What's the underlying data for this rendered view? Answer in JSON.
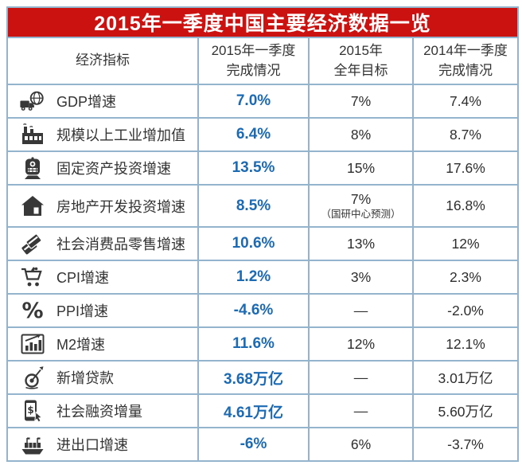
{
  "table": {
    "title": "2015年一季度中国主要经济数据一览",
    "header": {
      "indicator": "经济指标",
      "col_2015q1_line1": "2015年一季度",
      "col_2015q1_line2": "完成情况",
      "col_target_line1": "2015年",
      "col_target_line2": "全年目标",
      "col_2014q1_line1": "2014年一季度",
      "col_2014q1_line2": "完成情况"
    },
    "rows": [
      {
        "icon": "truck-globe-icon",
        "indicator": "GDP增速",
        "q1_2015": "7.0%",
        "target_2015": "7%",
        "note": "",
        "q1_2014": "7.4%"
      },
      {
        "icon": "factory-icon",
        "indicator": "规模以上工业增加值",
        "q1_2015": "6.4%",
        "target_2015": "8%",
        "note": "",
        "q1_2014": "8.7%"
      },
      {
        "icon": "train-icon",
        "indicator": "固定资产投资增速",
        "q1_2015": "13.5%",
        "target_2015": "15%",
        "note": "",
        "q1_2014": "17.6%"
      },
      {
        "icon": "house-icon",
        "indicator": "房地产开发投资增速",
        "q1_2015": "8.5%",
        "target_2015": "7%",
        "note": "（国研中心预测）",
        "q1_2014": "16.8%"
      },
      {
        "icon": "credit-cards-icon",
        "indicator": "社会消费品零售增速",
        "q1_2015": "10.6%",
        "target_2015": "13%",
        "note": "",
        "q1_2014": "12%"
      },
      {
        "icon": "shopping-cart-icon",
        "indicator": "CPI增速",
        "q1_2015": "1.2%",
        "target_2015": "3%",
        "note": "",
        "q1_2014": "2.3%"
      },
      {
        "icon": "percent-icon",
        "indicator": "PPI增速",
        "q1_2015": "-4.6%",
        "target_2015": "—",
        "note": "",
        "q1_2014": "-2.0%"
      },
      {
        "icon": "bar-chart-icon",
        "indicator": "M2增速",
        "q1_2015": "11.6%",
        "target_2015": "12%",
        "note": "",
        "q1_2014": "12.1%"
      },
      {
        "icon": "dart-target-icon",
        "indicator": "新增贷款",
        "q1_2015": "3.68万亿",
        "target_2015": "—",
        "note": "",
        "q1_2014": "3.01万亿"
      },
      {
        "icon": "mobile-payment-icon",
        "indicator": "社会融资增量",
        "q1_2015": "4.61万亿",
        "target_2015": "—",
        "note": "",
        "q1_2014": "5.60万亿"
      },
      {
        "icon": "ship-icon",
        "indicator": "进出口增速",
        "q1_2015": "-6%",
        "target_2015": "6%",
        "note": "",
        "q1_2014": "-3.7%"
      }
    ]
  },
  "chart_data": {
    "type": "table",
    "title": "2015年一季度中国主要经济数据一览",
    "columns": [
      "经济指标",
      "2015年一季度完成情况",
      "2015年全年目标",
      "2014年一季度完成情况"
    ],
    "rows": [
      [
        "GDP增速",
        "7.0%",
        "7%",
        "7.4%"
      ],
      [
        "规模以上工业增加值",
        "6.4%",
        "8%",
        "8.7%"
      ],
      [
        "固定资产投资增速",
        "13.5%",
        "15%",
        "17.6%"
      ],
      [
        "房地产开发投资增速",
        "8.5%",
        "7%（国研中心预测）",
        "16.8%"
      ],
      [
        "社会消费品零售增速",
        "10.6%",
        "13%",
        "12%"
      ],
      [
        "CPI增速",
        "1.2%",
        "3%",
        "2.3%"
      ],
      [
        "PPI增速",
        "-4.6%",
        "—",
        "-2.0%"
      ],
      [
        "M2增速",
        "11.6%",
        "12%",
        "12.1%"
      ],
      [
        "新增贷款",
        "3.68万亿",
        "—",
        "3.01万亿"
      ],
      [
        "社会融资增量",
        "4.61万亿",
        "—",
        "5.60万亿"
      ],
      [
        "进出口增速",
        "-6%",
        "6%",
        "-3.7%"
      ]
    ]
  },
  "colors": {
    "title_bg": "#cc1111",
    "title_text": "#ffffff",
    "accent_value_blue": "#1b6ab3",
    "grid_border_blue": "#94b4cd",
    "outer_border_blue": "#6d93b1",
    "body_text": "#333333",
    "icon_charcoal": "#383838"
  }
}
